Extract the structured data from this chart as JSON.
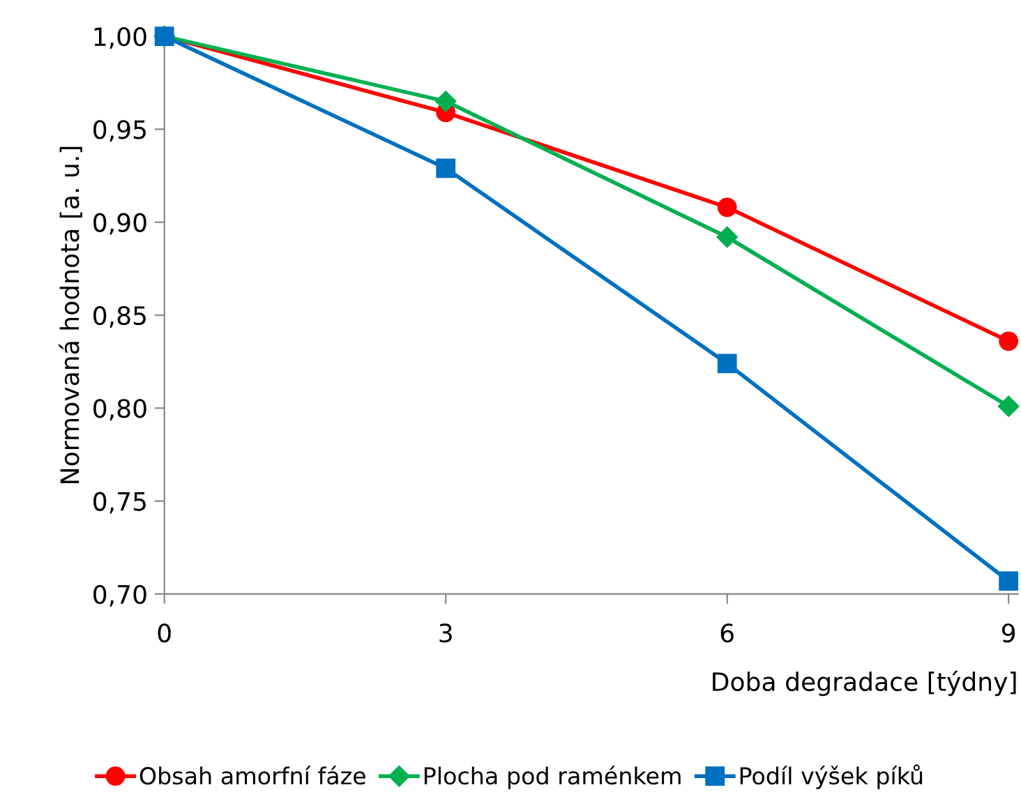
{
  "chart_data": {
    "type": "line",
    "xlabel": "Doba degradace [týdny]",
    "ylabel": "Normovaná hodnota [a. u.]",
    "x": [
      0,
      3,
      6,
      9
    ],
    "series": [
      {
        "name": "Obsah amorfní fáze",
        "color": "#ff0000",
        "marker": "circle",
        "values": [
          1.0,
          0.959,
          0.908,
          0.836
        ]
      },
      {
        "name": "Plocha pod raménkem",
        "color": "#00b050",
        "marker": "diamond",
        "values": [
          1.0,
          0.965,
          0.892,
          0.801
        ]
      },
      {
        "name": "Podíl výšek píků",
        "color": "#0070c0",
        "marker": "square",
        "values": [
          1.0,
          0.929,
          0.824,
          0.707
        ]
      }
    ],
    "xlim": [
      0,
      9.1
    ],
    "xticks": [
      0,
      3,
      6,
      9
    ],
    "ylim": [
      0.7,
      1.0
    ],
    "yticks": [
      {
        "value": 0.7,
        "label": "0,70"
      },
      {
        "value": 0.75,
        "label": "0,75"
      },
      {
        "value": 0.8,
        "label": "0,80"
      },
      {
        "value": 0.85,
        "label": "0,85"
      },
      {
        "value": 0.9,
        "label": "0,90"
      },
      {
        "value": 0.95,
        "label": "0,95"
      },
      {
        "value": 1.0,
        "label": "1,00"
      }
    ],
    "grid": false,
    "legend": "bottom",
    "line_style": "solid"
  }
}
